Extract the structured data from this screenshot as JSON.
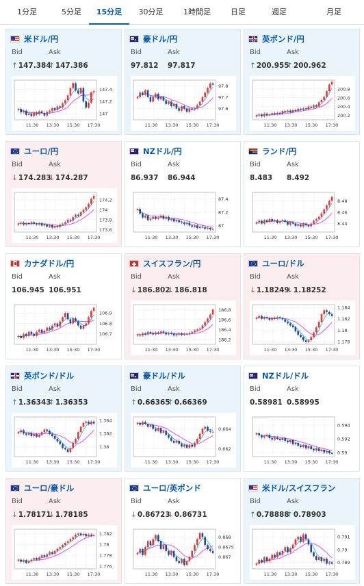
{
  "tabs": [
    {
      "label": "1分足",
      "active": false
    },
    {
      "label": "5分足",
      "active": false
    },
    {
      "label": "15分足",
      "active": true
    },
    {
      "label": "30分足",
      "active": false
    },
    {
      "label": "1時間足",
      "active": false
    },
    {
      "label": "日足",
      "active": false
    },
    {
      "label": "週足",
      "active": false
    },
    {
      "label": "月足",
      "active": false
    }
  ],
  "labels": {
    "bid": "Bid",
    "ask": "Ask"
  },
  "colors": {
    "up_arrow": "#1a73b8",
    "down_arrow": "#d43b3b",
    "bull_candle": "#e53935",
    "bear_candle": "#1e4b9c",
    "ma_short": "#29b6f6",
    "ma_long": "#e040fb",
    "title": "#0a5aa8"
  },
  "cards": [
    {
      "pair": "米ドル/円",
      "flag": "us-flag",
      "direction": "up",
      "bid": "147.384",
      "ask": "147.386",
      "bid_arrow": "↑",
      "ask_arrow": "↑",
      "x_ticks": [
        "11:30",
        "13:30",
        "15:30",
        "17:30"
      ],
      "y_ticks": [
        "147.4",
        "147.2",
        "147"
      ],
      "y_range": [
        146.9,
        147.55
      ],
      "closes": [
        147.08,
        147.02,
        147.05,
        146.98,
        147.0,
        146.96,
        147.02,
        146.99,
        147.04,
        147.01,
        146.97,
        147.03,
        147.05,
        147.09,
        147.06,
        147.12,
        147.1,
        147.17,
        147.22,
        147.3,
        147.42,
        147.5,
        147.38,
        147.33,
        147.42,
        147.2,
        147.1,
        147.18,
        147.35,
        147.37
      ]
    },
    {
      "pair": "豪ドル/円",
      "flag": "au-flag",
      "direction": "up",
      "bid": "97.812",
      "ask": "97.817",
      "bid_arrow": "",
      "ask_arrow": "",
      "x_ticks": [
        "11:30",
        "13:30",
        "15:30",
        "17:30"
      ],
      "y_ticks": [
        "97.8",
        "97.7",
        "97.6"
      ],
      "y_range": [
        97.5,
        97.85
      ],
      "closes": [
        97.7,
        97.74,
        97.72,
        97.76,
        97.7,
        97.66,
        97.7,
        97.73,
        97.68,
        97.7,
        97.67,
        97.64,
        97.66,
        97.62,
        97.64,
        97.6,
        97.58,
        97.62,
        97.6,
        97.57,
        97.6,
        97.59,
        97.6,
        97.63,
        97.66,
        97.7,
        97.74,
        97.78,
        97.82,
        97.81
      ]
    },
    {
      "pair": "英ポンド/円",
      "flag": "gb-flag",
      "direction": "up",
      "bid": "200.955",
      "ask": "200.962",
      "bid_arrow": "↑",
      "ask_arrow": "↑",
      "x_ticks": [
        "11:30",
        "13:30",
        "15:30",
        "17:30"
      ],
      "y_ticks": [
        "200.8",
        "200.6",
        "200.4",
        "200.2"
      ],
      "y_range": [
        200.1,
        201.0
      ],
      "closes": [
        200.2,
        200.22,
        200.18,
        200.24,
        200.2,
        200.22,
        200.25,
        200.23,
        200.26,
        200.24,
        200.3,
        200.28,
        200.31,
        200.27,
        200.32,
        200.3,
        200.35,
        200.33,
        200.36,
        200.34,
        200.4,
        200.38,
        200.43,
        200.4,
        200.5,
        200.55,
        200.62,
        200.75,
        200.9,
        200.96
      ]
    },
    {
      "pair": "ユーロ/円",
      "flag": "eu-flag",
      "direction": "down",
      "bid": "174.283",
      "ask": "174.287",
      "bid_arrow": "↓",
      "ask_arrow": "↓",
      "x_ticks": [
        "11:30",
        "13:30",
        "15:30",
        "17:30"
      ],
      "y_ticks": [
        "174.2",
        "174",
        "173.8",
        "173.6"
      ],
      "y_range": [
        173.55,
        174.35
      ],
      "closes": [
        173.72,
        173.74,
        173.7,
        173.73,
        173.71,
        173.75,
        173.72,
        173.7,
        173.73,
        173.68,
        173.7,
        173.66,
        173.69,
        173.64,
        173.67,
        173.65,
        173.7,
        173.72,
        173.75,
        173.8,
        173.78,
        173.85,
        173.9,
        173.88,
        173.95,
        174.0,
        174.05,
        174.12,
        174.22,
        174.28
      ]
    },
    {
      "pair": "NZドル/円",
      "flag": "nz-flag",
      "direction": "neutral",
      "bid": "86.937",
      "ask": "86.944",
      "bid_arrow": "",
      "ask_arrow": "",
      "x_ticks": [
        "11:30",
        "13:30",
        "15:30",
        "17:30"
      ],
      "y_ticks": [
        "87.4",
        "87.2",
        "87"
      ],
      "y_range": [
        86.9,
        87.5
      ],
      "closes": [
        87.25,
        87.18,
        87.12,
        87.15,
        87.08,
        87.1,
        87.13,
        87.1,
        87.12,
        87.15,
        87.1,
        87.13,
        87.08,
        87.1,
        87.06,
        87.08,
        87.05,
        87.04,
        87.02,
        87.04,
        87.0,
        86.98,
        87.0,
        86.96,
        86.98,
        86.97,
        86.95,
        86.96,
        86.94,
        86.94
      ]
    },
    {
      "pair": "ランド/円",
      "flag": "za-flag",
      "direction": "neutral",
      "bid": "8.483",
      "ask": "8.492",
      "bid_arrow": "",
      "ask_arrow": "",
      "x_ticks": [
        "11:30",
        "13:30",
        "15:30",
        "17:30"
      ],
      "y_ticks": [
        "8.48",
        "8.46",
        "8.44"
      ],
      "y_range": [
        8.425,
        8.495
      ],
      "closes": [
        8.442,
        8.445,
        8.44,
        8.446,
        8.443,
        8.448,
        8.444,
        8.446,
        8.441,
        8.444,
        8.446,
        8.443,
        8.438,
        8.442,
        8.44,
        8.436,
        8.438,
        8.435,
        8.44,
        8.437,
        8.435,
        8.44,
        8.445,
        8.448,
        8.452,
        8.458,
        8.465,
        8.472,
        8.48,
        8.487
      ]
    },
    {
      "pair": "カナダドル/円",
      "flag": "ca-flag",
      "direction": "neutral",
      "bid": "106.945",
      "ask": "106.951",
      "bid_arrow": "",
      "ask_arrow": "",
      "x_ticks": [
        "11:30",
        "13:30",
        "15:30",
        "17:30"
      ],
      "y_ticks": [
        "106.9",
        "106.8",
        "106.7"
      ],
      "y_range": [
        106.6,
        106.98
      ],
      "closes": [
        106.68,
        106.66,
        106.7,
        106.68,
        106.72,
        106.7,
        106.68,
        106.72,
        106.74,
        106.71,
        106.73,
        106.76,
        106.74,
        106.78,
        106.8,
        106.77,
        106.82,
        106.86,
        106.9,
        106.84,
        106.8,
        106.85,
        106.82,
        106.78,
        106.75,
        106.78,
        106.8,
        106.86,
        106.92,
        106.95
      ]
    },
    {
      "pair": "スイスフラン/円",
      "flag": "ch-flag",
      "direction": "down",
      "bid": "186.802",
      "ask": "186.818",
      "bid_arrow": "↓",
      "ask_arrow": "↓",
      "x_ticks": [
        "11:30",
        "13:30",
        "15:30",
        "17:30"
      ],
      "y_ticks": [
        "186.8",
        "186.6",
        "186.4",
        "186.2"
      ],
      "y_range": [
        186.1,
        186.9
      ],
      "closes": [
        186.3,
        186.28,
        186.32,
        186.3,
        186.35,
        186.33,
        186.3,
        186.34,
        186.32,
        186.36,
        186.34,
        186.3,
        186.33,
        186.31,
        186.28,
        186.3,
        186.32,
        186.29,
        186.31,
        186.3,
        186.33,
        186.35,
        186.38,
        186.4,
        186.42,
        186.48,
        186.55,
        186.62,
        186.7,
        186.8
      ]
    },
    {
      "pair": "ユーロ/ドル",
      "flag": "eu-flag",
      "direction": "down",
      "bid": "1.18249",
      "ask": "1.18252",
      "bid_arrow": "↓",
      "ask_arrow": "↓",
      "x_ticks": [
        "11:30",
        "13:30",
        "15:30",
        "17:30"
      ],
      "y_ticks": [
        "1.184",
        "1.182",
        "1.18",
        "1.178"
      ],
      "y_range": [
        1.1775,
        1.1845
      ],
      "closes": [
        1.1822,
        1.1825,
        1.182,
        1.1823,
        1.1821,
        1.1818,
        1.1822,
        1.182,
        1.1823,
        1.1821,
        1.1819,
        1.1815,
        1.1812,
        1.1808,
        1.1805,
        1.1798,
        1.1792,
        1.1788,
        1.1782,
        1.1779,
        1.1782,
        1.1788,
        1.1796,
        1.1805,
        1.1815,
        1.1828,
        1.1835,
        1.1832,
        1.1828,
        1.1825
      ]
    },
    {
      "pair": "英ポンド/ドル",
      "flag": "gb-flag",
      "direction": "up",
      "bid": "1.36343",
      "ask": "1.36353",
      "bid_arrow": "↑",
      "ask_arrow": "↑",
      "x_ticks": [
        "11:30",
        "13:30",
        "15:30",
        "17:30"
      ],
      "y_ticks": [
        "1.364",
        "1.362",
        "1.36"
      ],
      "y_range": [
        1.3585,
        1.3645
      ],
      "closes": [
        1.3622,
        1.3625,
        1.362,
        1.3618,
        1.3621,
        1.3616,
        1.3619,
        1.3615,
        1.3618,
        1.3622,
        1.3626,
        1.3624,
        1.3619,
        1.3616,
        1.3612,
        1.3608,
        1.3604,
        1.3598,
        1.3596,
        1.3592,
        1.3598,
        1.3606,
        1.3612,
        1.3622,
        1.363,
        1.3636,
        1.3638,
        1.3634,
        1.3638,
        1.3635
      ]
    },
    {
      "pair": "豪ドル/ドル",
      "flag": "au-flag",
      "direction": "up",
      "bid": "0.66365",
      "ask": "0.66369",
      "bid_arrow": "↑",
      "ask_arrow": "↑",
      "x_ticks": [
        "11:30",
        "13:30",
        "15:30",
        "17:30"
      ],
      "y_ticks": [
        "0.664",
        "0.662"
      ],
      "y_range": [
        0.6612,
        0.6652
      ],
      "closes": [
        0.6646,
        0.6644,
        0.6647,
        0.6645,
        0.6642,
        0.6644,
        0.664,
        0.6638,
        0.6641,
        0.6636,
        0.6638,
        0.6634,
        0.6631,
        0.6628,
        0.6626,
        0.6628,
        0.6625,
        0.6622,
        0.6624,
        0.6621,
        0.6624,
        0.6622,
        0.6626,
        0.663,
        0.6635,
        0.664,
        0.6642,
        0.6638,
        0.6637,
        0.6637
      ]
    },
    {
      "pair": "NZドル/ドル",
      "flag": "nz-flag",
      "direction": "neutral",
      "bid": "0.58981",
      "ask": "0.58995",
      "bid_arrow": "",
      "ask_arrow": "",
      "x_ticks": [
        "11:30",
        "13:30",
        "15:30",
        "17:30"
      ],
      "y_ticks": [
        "0.594",
        "0.592",
        "0.59"
      ],
      "y_range": [
        0.5894,
        0.5952
      ],
      "closes": [
        0.5928,
        0.5925,
        0.5922,
        0.5924,
        0.5926,
        0.5921,
        0.5919,
        0.5922,
        0.592,
        0.5918,
        0.5921,
        0.5917,
        0.5915,
        0.5918,
        0.5912,
        0.5914,
        0.591,
        0.5908,
        0.5911,
        0.5906,
        0.5909,
        0.5905,
        0.5903,
        0.5906,
        0.5902,
        0.5904,
        0.59,
        0.5902,
        0.5899,
        0.5898
      ]
    },
    {
      "pair": "ユーロ/豪ドル",
      "flag": "eu-flag",
      "direction": "down",
      "bid": "1.78171",
      "ask": "1.78185",
      "bid_arrow": "↓",
      "ask_arrow": "↓",
      "x_ticks": [
        "11:30",
        "13:30",
        "15:30",
        "17:30"
      ],
      "y_ticks": [
        "1.782",
        "1.78",
        "1.778",
        "1.776"
      ],
      "y_range": [
        1.7755,
        1.7828
      ],
      "closes": [
        1.7772,
        1.7768,
        1.7771,
        1.7766,
        1.7769,
        1.7772,
        1.7775,
        1.7772,
        1.7776,
        1.778,
        1.7777,
        1.7782,
        1.7786,
        1.7783,
        1.7788,
        1.7792,
        1.7795,
        1.7799,
        1.7803,
        1.7806,
        1.781,
        1.7813,
        1.7818,
        1.782,
        1.7817,
        1.7819,
        1.7815,
        1.7818,
        1.7816,
        1.7817
      ]
    },
    {
      "pair": "ユーロ/英ポンド",
      "flag": "eu-flag",
      "direction": "neutral",
      "bid": "0.86723",
      "ask": "0.86731",
      "bid_arrow": "↓",
      "ask_arrow": "↓",
      "x_ticks": [
        "11:30",
        "13:30",
        "15:30",
        "17:30"
      ],
      "y_ticks": [
        "0.868",
        "0.8675",
        "0.867"
      ],
      "y_range": [
        0.8664,
        0.8684
      ],
      "closes": [
        0.8672,
        0.8674,
        0.8671,
        0.8675,
        0.8678,
        0.8676,
        0.8679,
        0.8681,
        0.8678,
        0.8674,
        0.8676,
        0.8673,
        0.8671,
        0.8673,
        0.867,
        0.8668,
        0.8667,
        0.8669,
        0.8666,
        0.8668,
        0.867,
        0.8673,
        0.8676,
        0.8679,
        0.8682,
        0.868,
        0.8676,
        0.8674,
        0.8673,
        0.8672
      ]
    },
    {
      "pair": "米ドル/スイスフラン",
      "flag": "us-flag",
      "direction": "up",
      "bid": "0.78888",
      "ask": "0.78903",
      "bid_arrow": "↑",
      "ask_arrow": "↑",
      "x_ticks": [
        "11:30",
        "13:30",
        "15:30",
        "17:30"
      ],
      "y_ticks": [
        "0.791",
        "0.79",
        "0.789"
      ],
      "y_range": [
        0.7885,
        0.7916
      ],
      "closes": [
        0.7889,
        0.7892,
        0.789,
        0.7894,
        0.7891,
        0.7893,
        0.7896,
        0.7894,
        0.7898,
        0.7896,
        0.7899,
        0.7902,
        0.7898,
        0.7901,
        0.7904,
        0.7908,
        0.791,
        0.7906,
        0.7912,
        0.7908,
        0.7904,
        0.7898,
        0.7895,
        0.7892,
        0.7894,
        0.7891,
        0.7893,
        0.7889,
        0.789,
        0.7889
      ]
    }
  ]
}
